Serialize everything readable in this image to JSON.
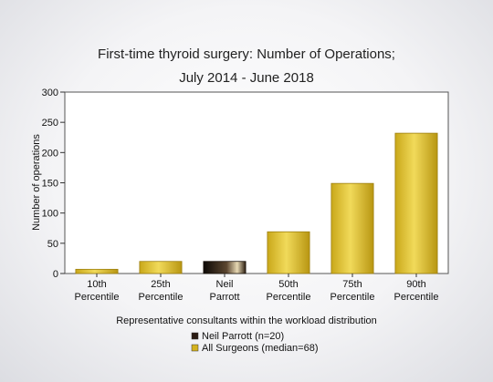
{
  "chart_data": {
    "type": "bar",
    "title": [
      "First-time thyroid surgery: Number of Operations;",
      "July 2014 - June 2018"
    ],
    "xlabel": "Representative consultants within the workload distribution",
    "ylabel": "Number of operations",
    "ylim": [
      0,
      300
    ],
    "yticks": [
      0,
      50,
      100,
      150,
      200,
      250,
      300
    ],
    "grid": false,
    "legend_placement": "bottom",
    "categories": [
      [
        "10th",
        "Percentile"
      ],
      [
        "25th",
        "Percentile"
      ],
      [
        "Neil",
        "Parrott"
      ],
      [
        "50th",
        "Percentile"
      ],
      [
        "75th",
        "Percentile"
      ],
      [
        "90th",
        "Percentile"
      ]
    ],
    "values": [
      7,
      20,
      20,
      69,
      149,
      232
    ],
    "bar_series": [
      "all",
      "all",
      "surgeon",
      "all",
      "all",
      "all"
    ],
    "series": [
      {
        "key": "surgeon",
        "name": "Neil Parrott (n=20)",
        "color": "#2a1a12"
      },
      {
        "key": "all",
        "name": "All Surgeons (median=68)",
        "color": "#d4b21e"
      }
    ]
  }
}
